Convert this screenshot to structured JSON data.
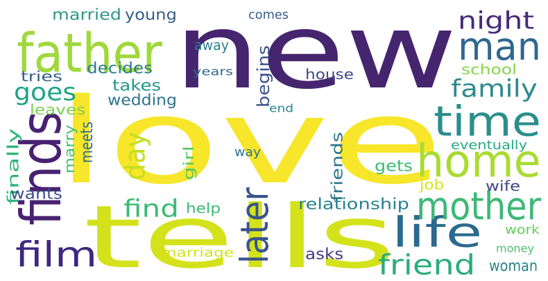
{
  "words": [
    {
      "text": "new",
      "color": "#46256f",
      "vertical": false
    },
    {
      "text": "love",
      "color": "#f7e629",
      "vertical": false
    },
    {
      "text": "tells",
      "color": "#d4e21b",
      "vertical": false
    },
    {
      "text": "finds",
      "color": "#482272",
      "vertical": true
    },
    {
      "text": "father",
      "color": "#a0d83c",
      "vertical": false
    },
    {
      "text": "man",
      "color": "#31678d",
      "vertical": false
    },
    {
      "text": "time",
      "color": "#2a8e8c",
      "vertical": false
    },
    {
      "text": "home",
      "color": "#aadb31",
      "vertical": false
    },
    {
      "text": "life",
      "color": "#2b6a8e",
      "vertical": false
    },
    {
      "text": "mother",
      "color": "#3db877",
      "vertical": false
    },
    {
      "text": "film",
      "color": "#3c2980",
      "vertical": false
    },
    {
      "text": "later",
      "color": "#39548c",
      "vertical": true
    },
    {
      "text": "day",
      "color": "#c4df22",
      "vertical": true
    },
    {
      "text": "friend",
      "color": "#2bad7c",
      "vertical": false
    },
    {
      "text": "night",
      "color": "#482a7a",
      "vertical": false
    },
    {
      "text": "family",
      "color": "#2d8a8d",
      "vertical": false
    },
    {
      "text": "goes",
      "color": "#1fa386",
      "vertical": false
    },
    {
      "text": "find",
      "color": "#3cba75",
      "vertical": false
    },
    {
      "text": "married",
      "color": "#2f968a",
      "vertical": false
    },
    {
      "text": "young",
      "color": "#365c8d",
      "vertical": false
    },
    {
      "text": "comes",
      "color": "#365c8d",
      "vertical": false
    },
    {
      "text": "away",
      "color": "#2b808e",
      "vertical": false
    },
    {
      "text": "decides",
      "color": "#2a7b8e",
      "vertical": false
    },
    {
      "text": "tries",
      "color": "#34618d",
      "vertical": false
    },
    {
      "text": "takes",
      "color": "#1f988b",
      "vertical": false
    },
    {
      "text": "wedding",
      "color": "#2c738e",
      "vertical": false
    },
    {
      "text": "leaves",
      "color": "#7ad151",
      "vertical": false
    },
    {
      "text": "years",
      "color": "#30688e",
      "vertical": false
    },
    {
      "text": "begins",
      "color": "#3b528b",
      "vertical": true
    },
    {
      "text": "house",
      "color": "#3f4889",
      "vertical": false
    },
    {
      "text": "school",
      "color": "#86d549",
      "vertical": false
    },
    {
      "text": "end",
      "color": "#24868e",
      "vertical": false
    },
    {
      "text": "finally",
      "color": "#2fb47c",
      "vertical": true
    },
    {
      "text": "marry",
      "color": "#44bf70",
      "vertical": true
    },
    {
      "text": "meets",
      "color": "#2e6f8e",
      "vertical": true
    },
    {
      "text": "way",
      "color": "#2c728e",
      "vertical": false
    },
    {
      "text": "girl",
      "color": "#5ec962",
      "vertical": true
    },
    {
      "text": "friends",
      "color": "#2a768e",
      "vertical": true
    },
    {
      "text": "gets",
      "color": "#3bbb75",
      "vertical": false
    },
    {
      "text": "eventually",
      "color": "#24aa83",
      "vertical": false
    },
    {
      "text": "wants",
      "color": "#3b528b",
      "vertical": false
    },
    {
      "text": "job",
      "color": "#d8e219",
      "vertical": false
    },
    {
      "text": "wife",
      "color": "#3f4788",
      "vertical": false
    },
    {
      "text": "relationship",
      "color": "#27808e",
      "vertical": false
    },
    {
      "text": "help",
      "color": "#3aba76",
      "vertical": false
    },
    {
      "text": "work",
      "color": "#67cc5c",
      "vertical": false
    },
    {
      "text": "asks",
      "color": "#443a83",
      "vertical": false
    },
    {
      "text": "marriage",
      "color": "#d2e21b",
      "vertical": false
    },
    {
      "text": "woman",
      "color": "#25838e",
      "vertical": false
    },
    {
      "text": "money",
      "color": "#4ac16d",
      "vertical": false
    }
  ]
}
